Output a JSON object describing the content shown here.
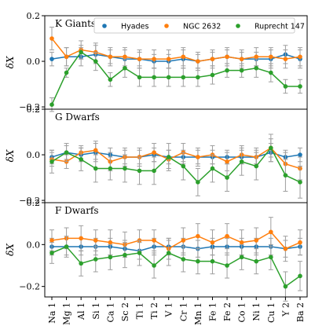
{
  "chart_data": {
    "type": "line",
    "ylabel": "δX",
    "categories": [
      "Na 1",
      "Mg 1",
      "Al 1",
      "Si 1",
      "Ca 1",
      "Sc 2",
      "Ti 1",
      "Ti 2",
      "V 1",
      "Cr 1",
      "Mn 1",
      "Fe 1",
      "Fe 2",
      "Co 1",
      "Ni 1",
      "Cu 1",
      "Y 2",
      "Ba 2"
    ],
    "yticks": [
      -0.2,
      0.0,
      0.2
    ],
    "ytick_labels": [
      "−0.2",
      "0.0",
      "0.2"
    ],
    "legend": {
      "placement": "top",
      "entries": [
        {
          "name": "Hyades",
          "color": "#1f77b4"
        },
        {
          "name": "NGC 2632",
          "color": "#ff7f0e"
        },
        {
          "name": "Ruprecht 147",
          "color": "#2ca02c"
        }
      ]
    },
    "panels": [
      {
        "title": "K Giants",
        "ylim": [
          -0.21,
          0.2
        ],
        "series": [
          {
            "name": "Hyades",
            "color": "#1f77b4",
            "values": [
              0.01,
              0.02,
              0.02,
              0.03,
              0.02,
              0.01,
              0.01,
              0.0,
              0.0,
              0.01,
              0.0,
              0.01,
              0.02,
              0.01,
              0.01,
              0.01,
              0.03,
              0.01
            ],
            "errors": [
              0.03,
              0.04,
              0.04,
              0.04,
              0.03,
              0.04,
              0.03,
              0.03,
              0.03,
              0.04,
              0.03,
              0.03,
              0.03,
              0.03,
              0.03,
              0.04,
              0.04,
              0.04
            ]
          },
          {
            "name": "NGC 2632",
            "color": "#ff7f0e",
            "values": [
              0.1,
              0.02,
              0.05,
              0.04,
              0.02,
              0.02,
              0.01,
              0.01,
              0.01,
              0.02,
              0.0,
              0.01,
              0.02,
              0.01,
              0.02,
              0.02,
              0.01,
              0.02
            ],
            "errors": [
              0.05,
              0.04,
              0.04,
              0.04,
              0.04,
              0.04,
              0.04,
              0.04,
              0.04,
              0.04,
              0.04,
              0.04,
              0.04,
              0.04,
              0.04,
              0.04,
              0.04,
              0.04
            ]
          },
          {
            "name": "Ruprecht 147",
            "color": "#2ca02c",
            "values": [
              -0.19,
              -0.05,
              0.04,
              0.0,
              -0.08,
              -0.03,
              -0.07,
              -0.07,
              -0.07,
              -0.07,
              -0.07,
              -0.06,
              -0.04,
              -0.04,
              -0.03,
              -0.05,
              -0.11,
              -0.11
            ],
            "errors": [
              0.03,
              0.02,
              0.03,
              0.04,
              0.03,
              0.04,
              0.04,
              0.04,
              0.04,
              0.04,
              0.04,
              0.04,
              0.03,
              0.03,
              0.04,
              0.04,
              0.03,
              0.03
            ]
          }
        ]
      },
      {
        "title": "G Dwarfs",
        "ylim": [
          -0.21,
          0.2
        ],
        "series": [
          {
            "name": "Hyades",
            "color": "#1f77b4",
            "values": [
              -0.01,
              0.01,
              0.0,
              0.01,
              0.0,
              -0.01,
              -0.01,
              0.0,
              -0.01,
              -0.01,
              -0.01,
              -0.01,
              -0.01,
              -0.01,
              -0.01,
              0.01,
              -0.01,
              0.0
            ],
            "errors": [
              0.03,
              0.03,
              0.03,
              0.04,
              0.03,
              0.03,
              0.03,
              0.03,
              0.03,
              0.03,
              0.03,
              0.03,
              0.03,
              0.03,
              0.03,
              0.04,
              0.03,
              0.03
            ]
          },
          {
            "name": "NGC 2632",
            "color": "#ff7f0e",
            "values": [
              -0.02,
              -0.03,
              0.01,
              0.02,
              -0.03,
              -0.01,
              -0.01,
              0.01,
              -0.02,
              0.01,
              -0.01,
              0.0,
              -0.03,
              0.0,
              -0.01,
              0.03,
              -0.04,
              -0.06
            ],
            "errors": [
              0.03,
              0.03,
              0.03,
              0.04,
              0.04,
              0.04,
              0.04,
              0.04,
              0.04,
              0.04,
              0.04,
              0.04,
              0.04,
              0.04,
              0.04,
              0.04,
              0.05,
              0.05
            ]
          },
          {
            "name": "Ruprecht 147",
            "color": "#2ca02c",
            "values": [
              -0.03,
              0.01,
              -0.02,
              -0.06,
              -0.06,
              -0.06,
              -0.07,
              -0.07,
              -0.01,
              -0.05,
              -0.12,
              -0.06,
              -0.1,
              -0.03,
              -0.05,
              0.03,
              -0.09,
              -0.12
            ],
            "errors": [
              0.05,
              0.04,
              0.05,
              0.06,
              0.05,
              0.06,
              0.06,
              0.06,
              0.06,
              0.06,
              0.06,
              0.06,
              0.06,
              0.06,
              0.06,
              0.06,
              0.07,
              0.07
            ]
          }
        ]
      },
      {
        "title": "F Dwarfs",
        "ylim": [
          -0.25,
          0.2
        ],
        "series": [
          {
            "name": "Hyades",
            "color": "#1f77b4",
            "values": [
              -0.01,
              -0.01,
              -0.01,
              -0.01,
              -0.01,
              -0.02,
              -0.03,
              -0.01,
              -0.01,
              -0.01,
              -0.02,
              -0.01,
              -0.01,
              -0.01,
              -0.01,
              -0.01,
              -0.02,
              -0.01
            ],
            "errors": [
              0.04,
              0.04,
              0.04,
              0.04,
              0.04,
              0.04,
              0.04,
              0.04,
              0.04,
              0.04,
              0.04,
              0.04,
              0.04,
              0.04,
              0.04,
              0.04,
              0.04,
              0.04
            ]
          },
          {
            "name": "NGC 2632",
            "color": "#ff7f0e",
            "values": [
              0.02,
              0.03,
              0.03,
              0.02,
              0.01,
              0.0,
              0.02,
              0.02,
              -0.02,
              0.02,
              0.04,
              0.01,
              0.04,
              0.01,
              0.02,
              0.06,
              -0.02,
              0.01
            ],
            "errors": [
              0.05,
              0.05,
              0.06,
              0.05,
              0.06,
              0.06,
              0.05,
              0.05,
              0.05,
              0.06,
              0.06,
              0.06,
              0.06,
              0.06,
              0.06,
              0.07,
              0.06,
              0.06
            ]
          },
          {
            "name": "Ruprecht 147",
            "color": "#2ca02c",
            "values": [
              -0.04,
              -0.01,
              -0.09,
              -0.07,
              -0.06,
              -0.05,
              -0.04,
              -0.1,
              -0.04,
              -0.07,
              -0.08,
              -0.08,
              -0.1,
              -0.06,
              -0.08,
              -0.06,
              -0.2,
              -0.15
            ],
            "errors": [
              0.05,
              0.05,
              0.06,
              0.06,
              0.06,
              0.06,
              0.06,
              0.06,
              0.06,
              0.06,
              0.06,
              0.06,
              0.06,
              0.06,
              0.06,
              0.06,
              0.07,
              0.07
            ]
          }
        ]
      }
    ]
  }
}
